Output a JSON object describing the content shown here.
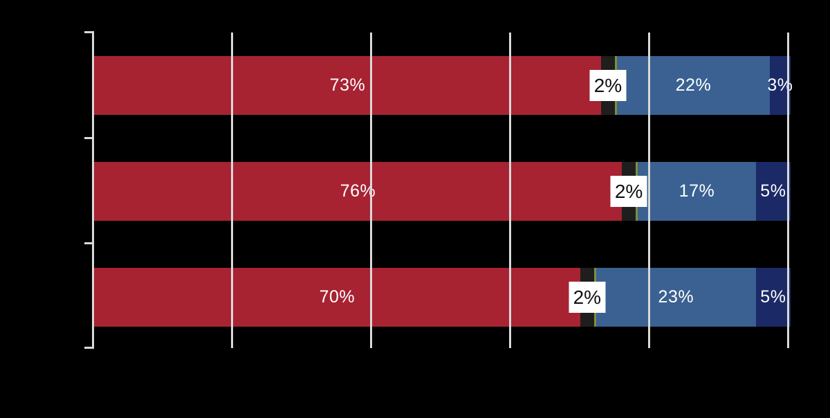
{
  "chart_data": {
    "type": "bar",
    "orientation": "horizontal_stacked",
    "title": "",
    "categories": [
      "",
      "",
      ""
    ],
    "x_axis": {
      "min": 0,
      "max": 100,
      "unit": "percent",
      "gridlines_pct": [
        0,
        20,
        40,
        60,
        80,
        100
      ],
      "tick_labels_visible": false,
      "grid": true
    },
    "legend_visible": false,
    "series": [
      {
        "name": "red-segment",
        "color": "#a72332",
        "values": [
          73,
          76,
          70
        ],
        "data_labels": [
          "73%",
          "76%",
          "70%"
        ],
        "label_color": "#ffffff",
        "label_style": "inside"
      },
      {
        "name": "dark-segment",
        "color": "#1e1e1e",
        "values": [
          2,
          2,
          2
        ],
        "data_labels": [
          "2%",
          "2%",
          "2%"
        ],
        "label_color": "#111111",
        "label_style": "white-callout-box"
      },
      {
        "name": "olive-sliver-segment",
        "color": "#7f8f3a",
        "values": [
          0.3,
          0.3,
          0.3
        ],
        "data_labels": [
          "",
          "",
          ""
        ],
        "label_color": "#ffffff",
        "label_style": "none"
      },
      {
        "name": "blue-segment",
        "color": "#3a6191",
        "values": [
          22,
          17,
          23
        ],
        "data_labels": [
          "22%",
          "17%",
          "23%"
        ],
        "label_color": "#ffffff",
        "label_style": "inside"
      },
      {
        "name": "navy-segment",
        "color": "#1b2a66",
        "values": [
          3,
          5,
          5
        ],
        "data_labels": [
          "3%",
          "5%",
          "5%"
        ],
        "label_color": "#ffffff",
        "label_style": "inside"
      }
    ]
  },
  "styles": {
    "background": "#000000",
    "gridline_color": "#d9d9d9",
    "axis_color": "#d9d9d9",
    "callout_bg": "#ffffff",
    "callout_text": "#111111"
  }
}
